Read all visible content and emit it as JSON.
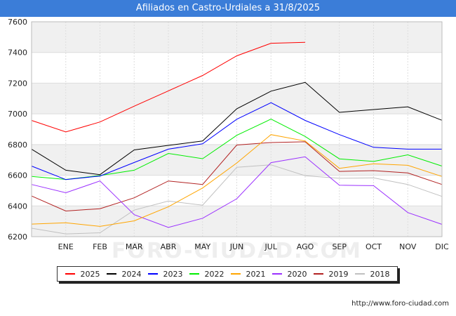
{
  "chart_data": {
    "type": "line",
    "title": "Afiliados en Castro-Urdiales a 31/8/2025",
    "categories": [
      "",
      "ENE",
      "FEB",
      "MAR",
      "ABR",
      "MAY",
      "JUN",
      "JUL",
      "AGO",
      "SEP",
      "OCT",
      "NOV",
      "DIC"
    ],
    "ylim": [
      6200,
      7600
    ],
    "yticks": [
      6200,
      6400,
      6600,
      6800,
      7000,
      7200,
      7400,
      7600
    ],
    "grid": true,
    "legend_position": "bottom",
    "series": [
      {
        "name": "2025",
        "color": "#ff0000",
        "values": [
          6957,
          6882,
          6947,
          7050,
          7150,
          7250,
          7378,
          7460,
          7466,
          null,
          null,
          null,
          null
        ]
      },
      {
        "name": "2024",
        "color": "#000000",
        "values": [
          6770,
          6633,
          6604,
          6765,
          6795,
          6823,
          7033,
          7148,
          7205,
          7010,
          7028,
          7046,
          6958
        ]
      },
      {
        "name": "2023",
        "color": "#0000ff",
        "values": [
          6660,
          6572,
          6595,
          6683,
          6770,
          6805,
          6965,
          7073,
          6957,
          6865,
          6782,
          6770,
          6770
        ]
      },
      {
        "name": "2022",
        "color": "#00ee00",
        "values": [
          6592,
          6573,
          6598,
          6633,
          6742,
          6708,
          6860,
          6966,
          6853,
          6707,
          6690,
          6733,
          6660
        ]
      },
      {
        "name": "2021",
        "color": "#ffa500",
        "values": [
          6282,
          6290,
          6267,
          6303,
          6395,
          6517,
          6680,
          6865,
          6823,
          6645,
          6675,
          6665,
          6592
        ]
      },
      {
        "name": "2020",
        "color": "#9b30ff",
        "values": [
          6540,
          6486,
          6563,
          6343,
          6260,
          6320,
          6447,
          6682,
          6720,
          6535,
          6532,
          6357,
          6280
        ]
      },
      {
        "name": "2019",
        "color": "#b22222",
        "values": [
          6465,
          6367,
          6382,
          6453,
          6563,
          6540,
          6797,
          6813,
          6818,
          6625,
          6630,
          6615,
          6540
        ]
      },
      {
        "name": "2018",
        "color": "#c0c0c0",
        "values": [
          6255,
          6218,
          6225,
          6373,
          6432,
          6405,
          6652,
          6668,
          6597,
          6580,
          6583,
          6540,
          6462
        ]
      }
    ]
  },
  "watermark": "FORO-CIUDAD.COM",
  "source_text": "http://www.foro-ciudad.com"
}
